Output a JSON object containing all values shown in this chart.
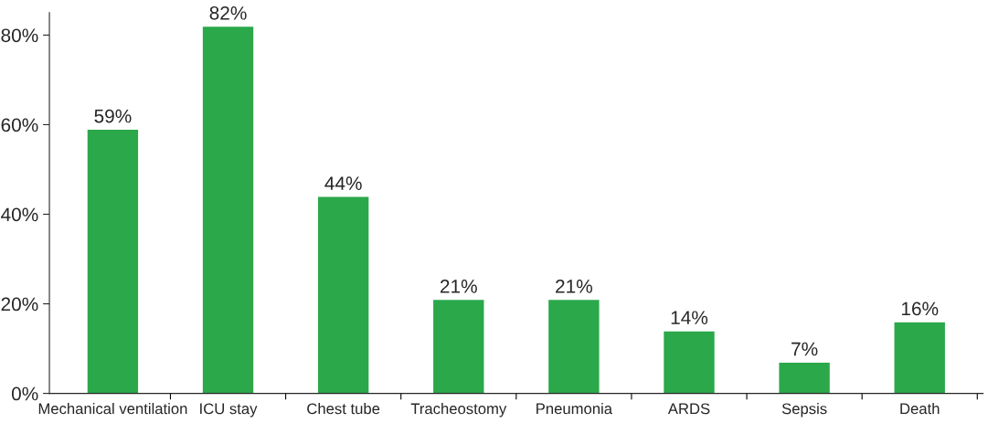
{
  "chart_data": {
    "type": "bar",
    "categories": [
      "Mechanical ventilation",
      "ICU stay",
      "Chest tube",
      "Tracheostomy",
      "Pneumonia",
      "ARDS",
      "Sepsis",
      "Death"
    ],
    "values": [
      59,
      82,
      44,
      21,
      21,
      14,
      7,
      16
    ],
    "value_labels": [
      "59%",
      "82%",
      "44%",
      "21%",
      "21%",
      "14%",
      "7%",
      "16%"
    ],
    "color": "#2ba84a",
    "ylim": [
      0,
      85
    ],
    "yticks": [
      {
        "value": 0,
        "label": "0%"
      },
      {
        "value": 20,
        "label": "20%"
      },
      {
        "value": 40,
        "label": "40%"
      },
      {
        "value": 60,
        "label": "60%"
      },
      {
        "value": 80,
        "label": "80%"
      }
    ],
    "grid": false
  }
}
